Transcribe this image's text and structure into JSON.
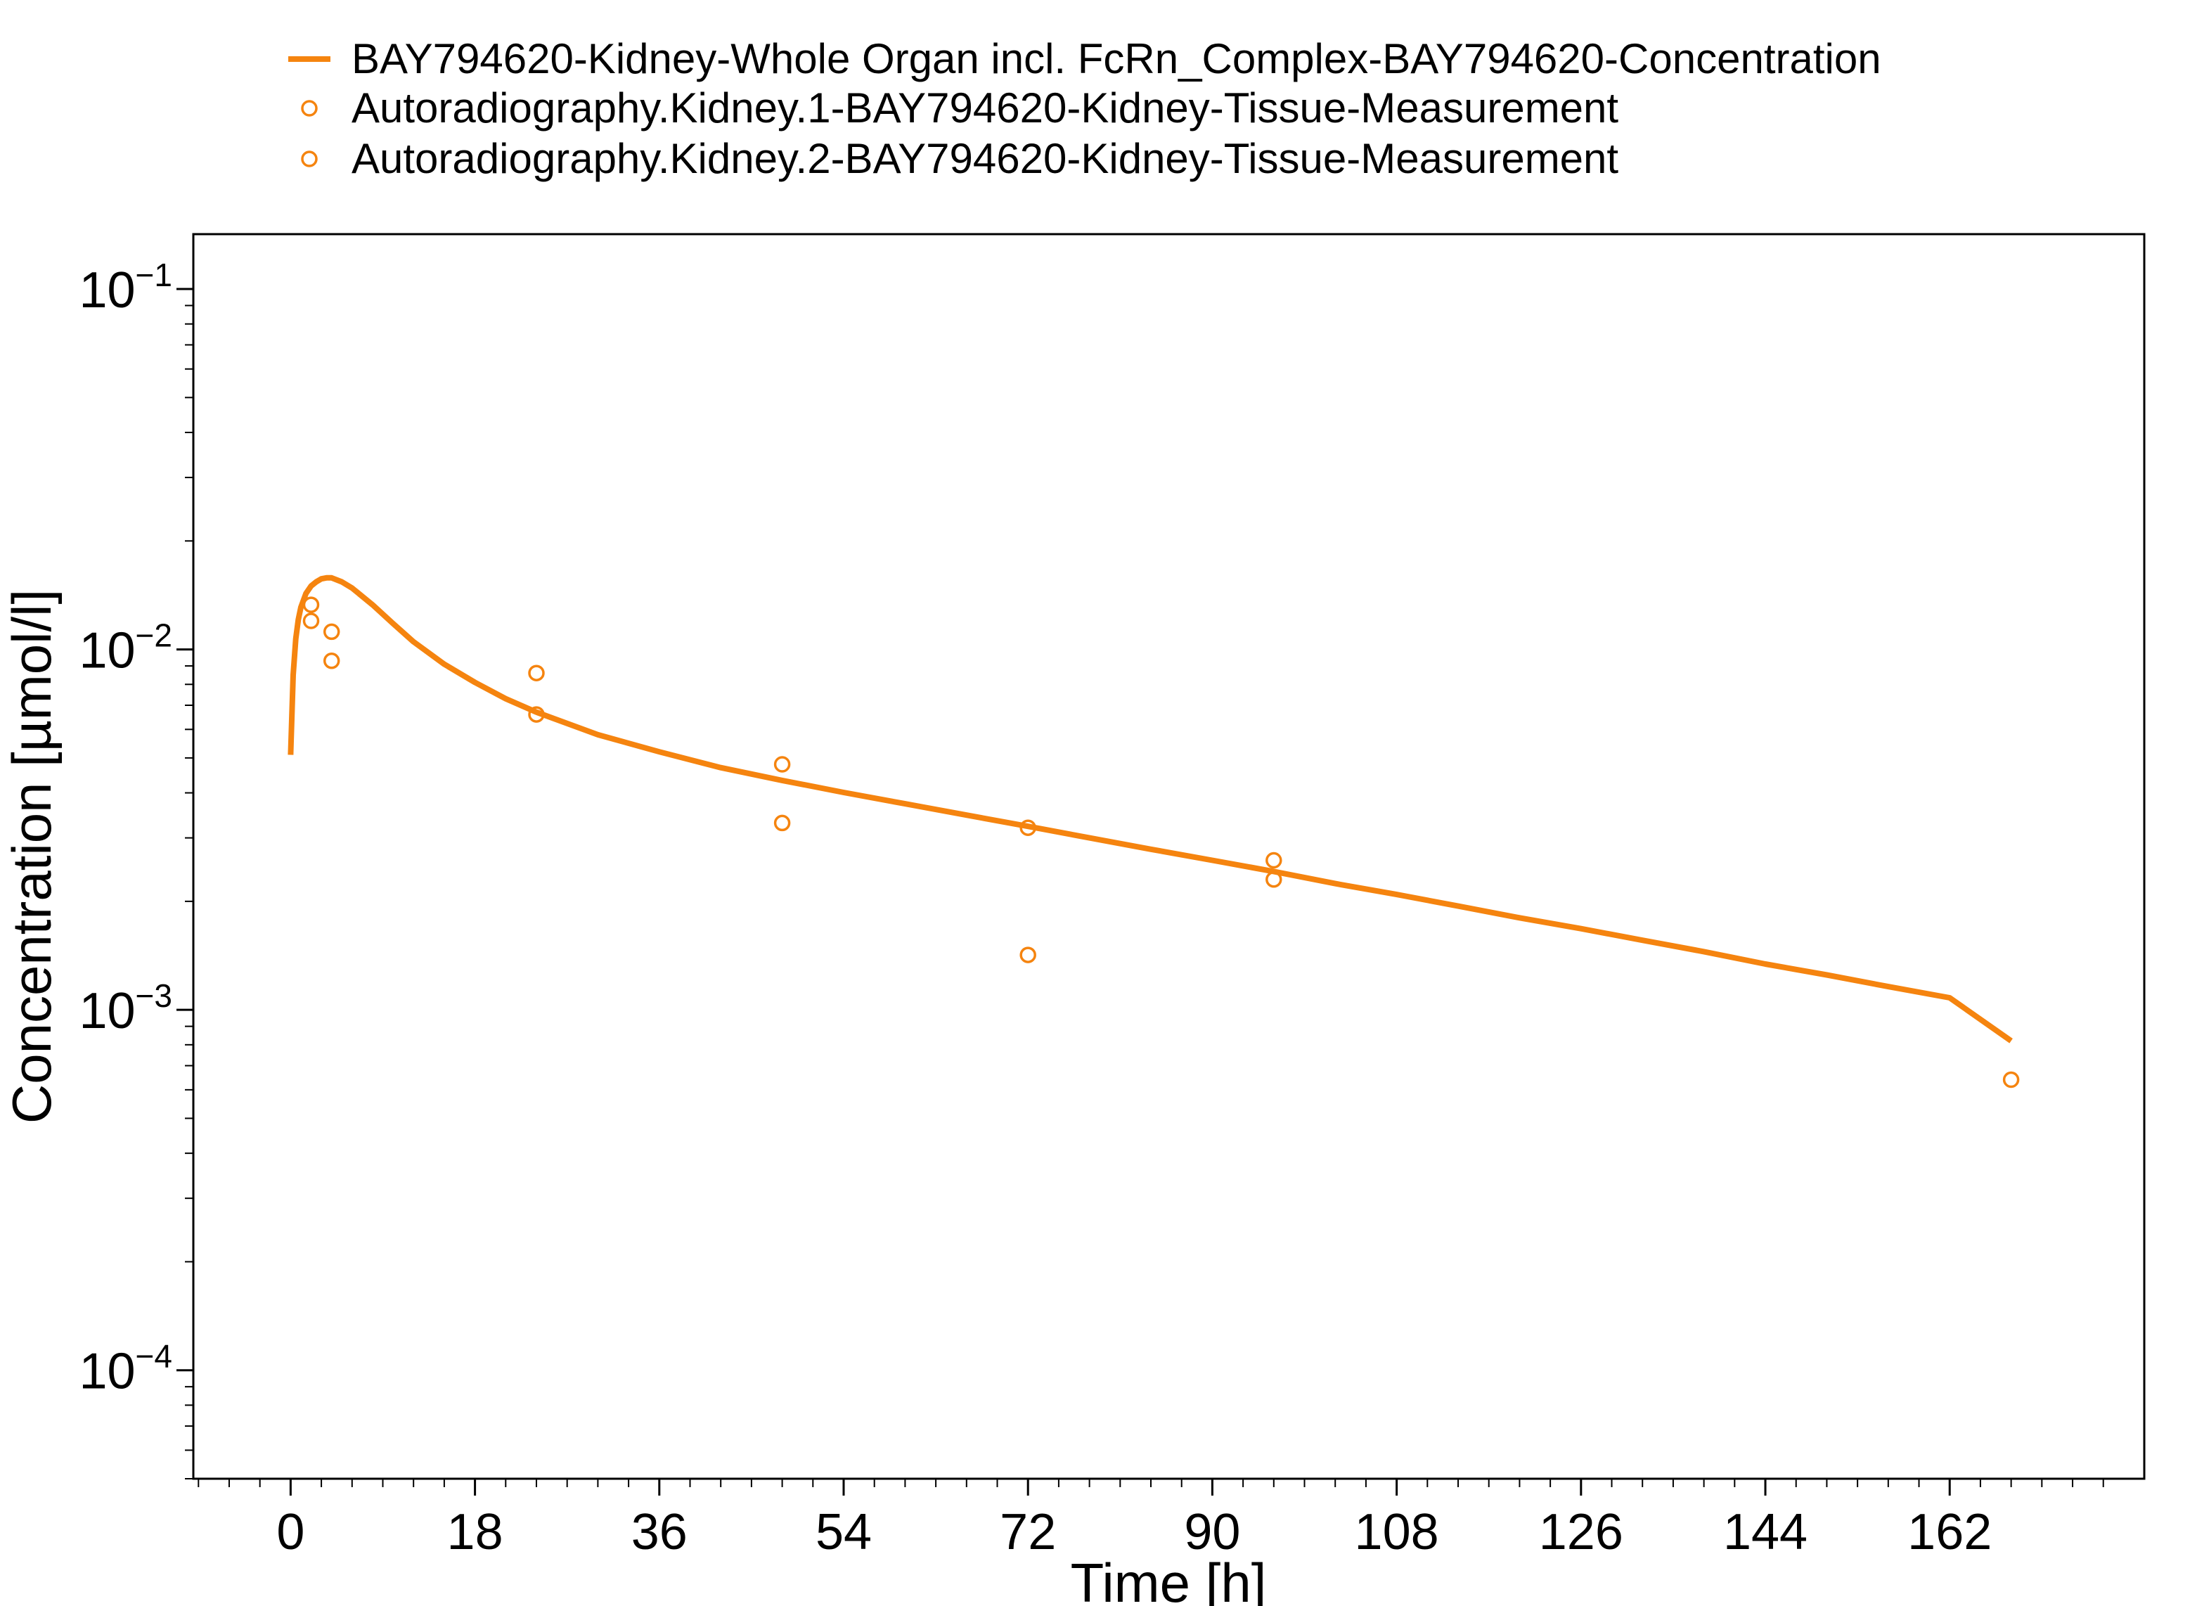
{
  "colors": {
    "series": "#F5840F",
    "axis": "#000000",
    "background": "#ffffff"
  },
  "chart_data": {
    "type": "line",
    "title": "",
    "xlabel": "Time [h]",
    "ylabel": "Concentration [µmol/l]",
    "xscale": "linear",
    "yscale": "log",
    "xlim": [
      -9.5,
      181
    ],
    "ylim": [
      5e-05,
      0.142
    ],
    "grid": false,
    "legend_position": "top",
    "x_ticks": [
      {
        "value": 0,
        "label": "0"
      },
      {
        "value": 18,
        "label": "18"
      },
      {
        "value": 36,
        "label": "36"
      },
      {
        "value": 54,
        "label": "54"
      },
      {
        "value": 72,
        "label": "72"
      },
      {
        "value": 90,
        "label": "90"
      },
      {
        "value": 108,
        "label": "108"
      },
      {
        "value": 126,
        "label": "126"
      },
      {
        "value": 144,
        "label": "144"
      },
      {
        "value": 162,
        "label": "162"
      }
    ],
    "y_ticks": [
      {
        "value": 0.1,
        "base": "10",
        "exponent": "−1"
      },
      {
        "value": 0.01,
        "base": "10",
        "exponent": "−2"
      },
      {
        "value": 0.001,
        "base": "10",
        "exponent": "−3"
      },
      {
        "value": 0.0001,
        "base": "10",
        "exponent": "−4"
      }
    ],
    "series": [
      {
        "name": "BAY794620-Kidney-Whole Organ incl. FcRn_Complex-BAY794620-Concentration",
        "kind": "line",
        "x": [
          0,
          0.25,
          0.5,
          0.75,
          1,
          1.5,
          2,
          2.5,
          3,
          3.5,
          4,
          5,
          6,
          8,
          10,
          12,
          15,
          18,
          21,
          24,
          30,
          36,
          42,
          48,
          54,
          60,
          66,
          72,
          78,
          84,
          90,
          96,
          102,
          108,
          114,
          120,
          126,
          132,
          138,
          144,
          150,
          156,
          162,
          168
        ],
        "y": [
          0.0051,
          0.0085,
          0.0107,
          0.0121,
          0.0131,
          0.0143,
          0.015,
          0.0154,
          0.0157,
          0.0158,
          0.0158,
          0.0154,
          0.0148,
          0.0133,
          0.0118,
          0.0105,
          0.0091,
          0.0081,
          0.0073,
          0.0067,
          0.0058,
          0.0052,
          0.0047,
          0.00433,
          0.00401,
          0.00373,
          0.00347,
          0.00323,
          0.003,
          0.00279,
          0.0026,
          0.00242,
          0.00224,
          0.00209,
          0.00194,
          0.0018,
          0.00168,
          0.00156,
          0.00145,
          0.00134,
          0.00125,
          0.00116,
          0.00108,
          0.00082
        ]
      },
      {
        "name": "Autoradiography.Kidney.1-BAY794620-Kidney-Tissue-Measurement",
        "kind": "markers",
        "x": [
          2,
          4,
          24,
          48,
          72,
          96,
          168
        ],
        "y": [
          0.0133,
          0.0112,
          0.0086,
          0.0048,
          0.0032,
          0.0026,
          0.00064
        ]
      },
      {
        "name": "Autoradiography.Kidney.2-BAY794620-Kidney-Tissue-Measurement",
        "kind": "markers",
        "x": [
          2,
          4,
          24,
          48,
          72,
          96
        ],
        "y": [
          0.012,
          0.0093,
          0.0066,
          0.0033,
          0.00142,
          0.0023
        ]
      }
    ]
  }
}
